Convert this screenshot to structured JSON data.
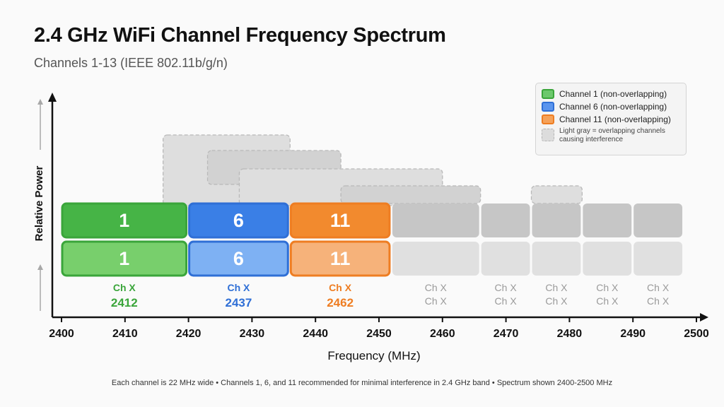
{
  "title": "2.4 GHz WiFi Channel Frequency Spectrum",
  "subtitle": "Channels 1-13 (IEEE 802.11b/g/n)",
  "footnote": "Each channel is 22 MHz wide • Channels 1, 6, and 11 recommended for minimal interference in 2.4 GHz band • Spectrum shown 2400-2500 MHz",
  "legend": {
    "items": [
      {
        "label": "Channel 1 (non-overlapping)",
        "color": "#3aa53a",
        "fill": "#6cc86c"
      },
      {
        "label": "Channel 6 (non-overlapping)",
        "color": "#2f6fd6",
        "fill": "#5b95ee"
      },
      {
        "label": "Channel 11 (non-overlapping)",
        "color": "#ee7d22",
        "fill": "#f5a25a"
      },
      {
        "label": "Light gray = overlapping channels causing interference",
        "color": "#b5b5b5",
        "fill": "#dcdcdc"
      }
    ]
  },
  "chart_data": {
    "type": "bar",
    "title": "2.4 GHz WiFi Channel Frequency Spectrum",
    "subtitle": "Channels 1-13 (IEEE 802.11b/g/n)",
    "xlabel": "Frequency (MHz)",
    "ylabel": "Relative Power",
    "xlim": [
      2400,
      2500
    ],
    "xticks": [
      2400,
      2410,
      2420,
      2430,
      2440,
      2450,
      2460,
      2470,
      2480,
      2490,
      2500
    ],
    "grid": false,
    "legend_position": "top-right",
    "highlighted_channels": [
      {
        "number": "1",
        "label": "Ch X",
        "center": "2412",
        "x_start": 2400,
        "x_end": 2420,
        "color": "#3aa53a",
        "dark_fill": "#46b446",
        "light_fill": "#78cf6c"
      },
      {
        "number": "6",
        "label": "Ch X",
        "center": "2437",
        "x_start": 2420,
        "x_end": 2436,
        "color": "#2f6fd6",
        "dark_fill": "#3a7fe6",
        "light_fill": "#7eb1f3"
      },
      {
        "number": "11",
        "label": "Ch X",
        "center": "2462",
        "x_start": 2436,
        "x_end": 2452,
        "color": "#ee7d22",
        "dark_fill": "#f28a2e",
        "light_fill": "#f6b27a"
      }
    ],
    "gray_columns": [
      {
        "x_start": 2452,
        "x_end": 2466,
        "label": "Ch X",
        "sublabel": "Ch X"
      },
      {
        "x_start": 2466,
        "x_end": 2474,
        "label": "Ch X",
        "sublabel": "Ch X"
      },
      {
        "x_start": 2474,
        "x_end": 2482,
        "label": "Ch X",
        "sublabel": "Ch X"
      },
      {
        "x_start": 2482,
        "x_end": 2490,
        "label": "Ch X",
        "sublabel": "Ch X"
      },
      {
        "x_start": 2490,
        "x_end": 2498,
        "label": "Ch X",
        "sublabel": "Ch X"
      }
    ],
    "overlap_blocks": [
      {
        "x_start": 2416,
        "x_end": 2436
      },
      {
        "x_start": 2423,
        "x_end": 2444
      },
      {
        "x_start": 2428,
        "x_end": 2460
      },
      {
        "x_start": 2444,
        "x_end": 2466
      },
      {
        "x_start": 2474,
        "x_end": 2482
      }
    ],
    "colors": {
      "gray_dark": "#c6c6c6",
      "gray_light": "#e0e0e0",
      "gray_label": "#9a9a9a"
    }
  }
}
